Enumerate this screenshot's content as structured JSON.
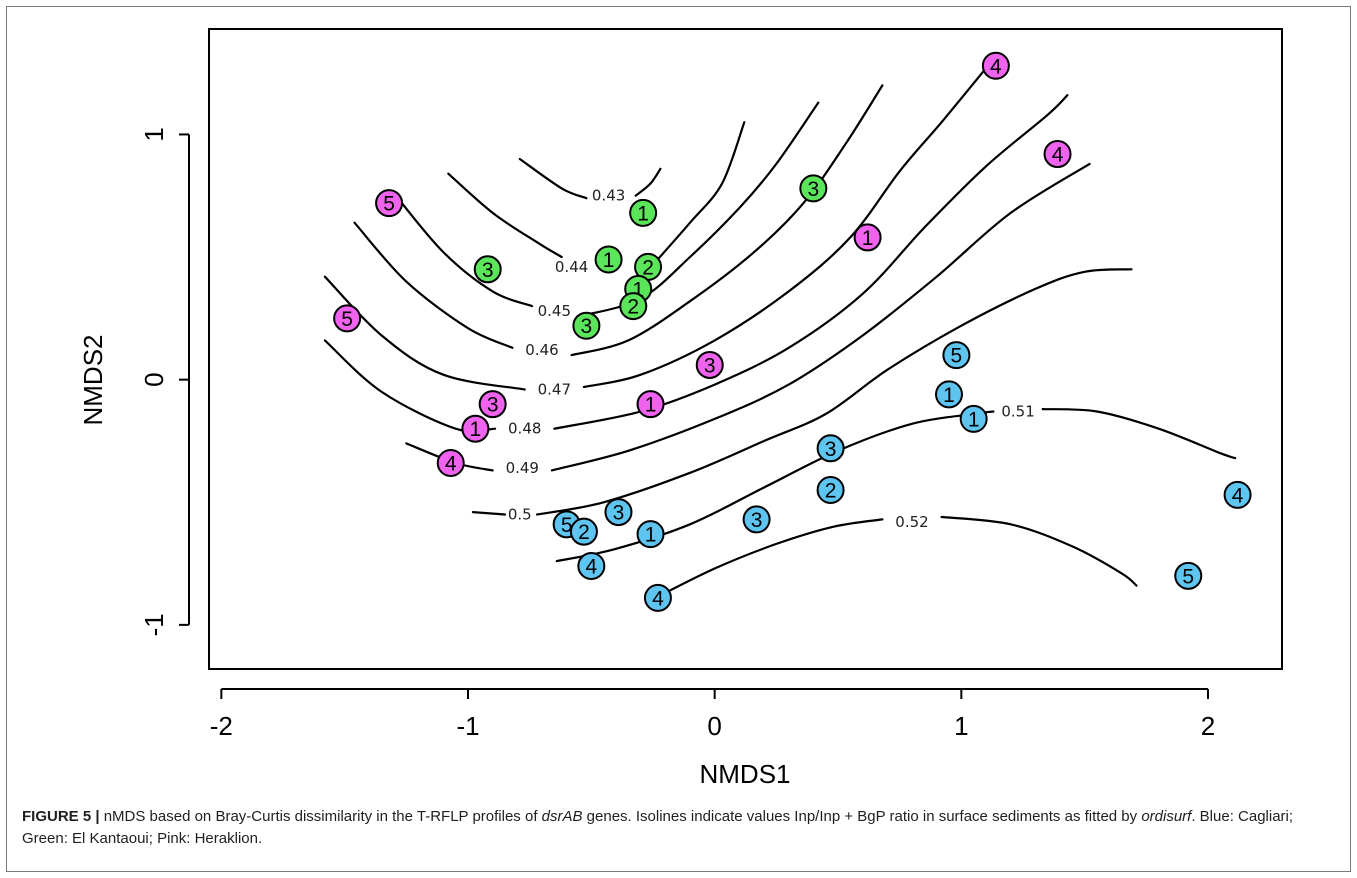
{
  "chart_data": {
    "type": "scatter",
    "xlabel": "NMDS1",
    "ylabel": "NMDS2",
    "xlim": [
      -2.05,
      2.3
    ],
    "ylim": [
      -1.18,
      1.43
    ],
    "x_ticks": [
      -2,
      -1,
      0,
      1,
      2
    ],
    "x_tick_labels": [
      "-2",
      "-1",
      "0",
      "1",
      "2"
    ],
    "y_ticks": [
      -1,
      0,
      1
    ],
    "y_tick_labels": [
      "-1",
      "0",
      "1"
    ],
    "grid": false,
    "legend": "none",
    "series": [
      {
        "color": "#5ec4f0",
        "points": [
          {
            "x": 0.98,
            "y": 0.1,
            "label": "5"
          },
          {
            "x": 0.95,
            "y": -0.06,
            "label": "1"
          },
          {
            "x": 1.05,
            "y": -0.16,
            "label": "1"
          },
          {
            "x": 0.47,
            "y": -0.28,
            "label": "3"
          },
          {
            "x": 0.47,
            "y": -0.45,
            "label": "2"
          },
          {
            "x": 0.17,
            "y": -0.57,
            "label": "3"
          },
          {
            "x": -0.39,
            "y": -0.54,
            "label": "3"
          },
          {
            "x": -0.6,
            "y": -0.59,
            "label": "5"
          },
          {
            "x": -0.53,
            "y": -0.62,
            "label": "2"
          },
          {
            "x": -0.26,
            "y": -0.63,
            "label": "1"
          },
          {
            "x": -0.5,
            "y": -0.76,
            "label": "4"
          },
          {
            "x": -0.23,
            "y": -0.89,
            "label": "4"
          },
          {
            "x": 2.12,
            "y": -0.47,
            "label": "4"
          },
          {
            "x": 1.92,
            "y": -0.8,
            "label": "5"
          }
        ]
      },
      {
        "color": "#5be55b",
        "points": [
          {
            "x": -0.29,
            "y": 0.68,
            "label": "1"
          },
          {
            "x": 0.4,
            "y": 0.78,
            "label": "3"
          },
          {
            "x": -0.43,
            "y": 0.49,
            "label": "1"
          },
          {
            "x": -0.27,
            "y": 0.46,
            "label": "2"
          },
          {
            "x": -0.31,
            "y": 0.37,
            "label": "1"
          },
          {
            "x": -0.33,
            "y": 0.3,
            "label": "2"
          },
          {
            "x": -0.52,
            "y": 0.22,
            "label": "3"
          },
          {
            "x": -0.92,
            "y": 0.45,
            "label": "3"
          }
        ]
      },
      {
        "color": "#f063ee",
        "points": [
          {
            "x": 1.14,
            "y": 1.28,
            "label": "4"
          },
          {
            "x": 1.39,
            "y": 0.92,
            "label": "4"
          },
          {
            "x": 0.62,
            "y": 0.58,
            "label": "1"
          },
          {
            "x": -1.32,
            "y": 0.72,
            "label": "5"
          },
          {
            "x": -1.49,
            "y": 0.25,
            "label": "5"
          },
          {
            "x": -0.02,
            "y": 0.06,
            "label": "3"
          },
          {
            "x": -0.26,
            "y": -0.1,
            "label": "1"
          },
          {
            "x": -0.9,
            "y": -0.1,
            "label": "3"
          },
          {
            "x": -0.97,
            "y": -0.2,
            "label": "1"
          },
          {
            "x": -1.07,
            "y": -0.34,
            "label": "4"
          }
        ]
      }
    ],
    "contours": [
      {
        "label": "0.43",
        "label_at": [
          -0.43,
          0.75
        ],
        "points": [
          [
            -0.79,
            0.9
          ],
          [
            -0.62,
            0.78
          ],
          [
            -0.52,
            0.74
          ]
        ],
        "points2": [
          [
            -0.32,
            0.75
          ],
          [
            -0.26,
            0.8
          ],
          [
            -0.22,
            0.86
          ]
        ]
      },
      {
        "label": "0.44",
        "label_at": [
          -0.58,
          0.46
        ],
        "points": [
          [
            -1.08,
            0.84
          ],
          [
            -0.9,
            0.68
          ],
          [
            -0.72,
            0.56
          ],
          [
            -0.62,
            0.5
          ]
        ],
        "points2": [
          [
            -0.24,
            0.48
          ],
          [
            -0.1,
            0.64
          ],
          [
            0.03,
            0.8
          ],
          [
            0.12,
            1.05
          ]
        ]
      },
      {
        "label": "0.45",
        "label_at": [
          -0.65,
          0.28
        ],
        "points": [
          [
            -1.3,
            0.76
          ],
          [
            -1.1,
            0.52
          ],
          [
            -0.9,
            0.36
          ],
          [
            -0.74,
            0.3
          ]
        ],
        "points2": [
          [
            -0.54,
            0.26
          ],
          [
            -0.3,
            0.33
          ],
          [
            -0.1,
            0.5
          ],
          [
            0.1,
            0.7
          ],
          [
            0.25,
            0.88
          ],
          [
            0.42,
            1.13
          ]
        ]
      },
      {
        "label": "0.46",
        "label_at": [
          -0.7,
          0.12
        ],
        "points": [
          [
            -1.46,
            0.64
          ],
          [
            -1.25,
            0.4
          ],
          [
            -1.0,
            0.21
          ],
          [
            -0.82,
            0.13
          ]
        ],
        "points2": [
          [
            -0.58,
            0.1
          ],
          [
            -0.35,
            0.16
          ],
          [
            -0.1,
            0.32
          ],
          [
            0.16,
            0.52
          ],
          [
            0.36,
            0.72
          ],
          [
            0.53,
            0.96
          ],
          [
            0.68,
            1.2
          ]
        ]
      },
      {
        "label": "0.47",
        "label_at": [
          -0.65,
          -0.04
        ],
        "points": [
          [
            -1.58,
            0.42
          ],
          [
            -1.35,
            0.18
          ],
          [
            -1.1,
            0.02
          ],
          [
            -0.77,
            -0.04
          ]
        ],
        "points2": [
          [
            -0.53,
            -0.03
          ],
          [
            -0.3,
            0.02
          ],
          [
            0.0,
            0.16
          ],
          [
            0.3,
            0.36
          ],
          [
            0.55,
            0.58
          ],
          [
            0.75,
            0.85
          ],
          [
            0.92,
            1.05
          ],
          [
            1.1,
            1.27
          ]
        ]
      },
      {
        "label": "0.48",
        "label_at": [
          -0.77,
          -0.2
        ],
        "points": [
          [
            -1.58,
            0.16
          ],
          [
            -1.35,
            -0.05
          ],
          [
            -1.05,
            -0.2
          ],
          [
            -0.89,
            -0.2
          ]
        ],
        "points2": [
          [
            -0.65,
            -0.2
          ],
          [
            -0.3,
            -0.13
          ],
          [
            0.0,
            -0.02
          ],
          [
            0.3,
            0.13
          ],
          [
            0.6,
            0.35
          ],
          [
            0.85,
            0.62
          ],
          [
            1.1,
            0.87
          ],
          [
            1.35,
            1.08
          ],
          [
            1.43,
            1.16
          ]
        ]
      },
      {
        "label": "0.49",
        "label_at": [
          -0.78,
          -0.36
        ],
        "points": [
          [
            -1.25,
            -0.26
          ],
          [
            -1.05,
            -0.34
          ],
          [
            -0.9,
            -0.37
          ]
        ],
        "points2": [
          [
            -0.66,
            -0.37
          ],
          [
            -0.35,
            -0.29
          ],
          [
            0.0,
            -0.16
          ],
          [
            0.3,
            -0.02
          ],
          [
            0.6,
            0.18
          ],
          [
            0.9,
            0.42
          ],
          [
            1.2,
            0.68
          ],
          [
            1.52,
            0.88
          ]
        ]
      },
      {
        "label": "0.5",
        "label_at": [
          -0.79,
          -0.55
        ],
        "points": [
          [
            -0.98,
            -0.54
          ],
          [
            -0.85,
            -0.55
          ]
        ],
        "points2": [
          [
            -0.72,
            -0.55
          ],
          [
            -0.45,
            -0.5
          ],
          [
            -0.1,
            -0.38
          ],
          [
            0.2,
            -0.25
          ],
          [
            0.45,
            -0.14
          ],
          [
            0.7,
            0.04
          ],
          [
            1.0,
            0.22
          ],
          [
            1.3,
            0.37
          ],
          [
            1.5,
            0.44
          ],
          [
            1.69,
            0.45
          ]
        ]
      },
      {
        "label": "0.51",
        "label_at": [
          1.23,
          -0.13
        ],
        "points": [
          [
            -0.64,
            -0.74
          ],
          [
            -0.4,
            -0.69
          ],
          [
            -0.1,
            -0.59
          ],
          [
            0.2,
            -0.44
          ],
          [
            0.5,
            -0.29
          ],
          [
            0.8,
            -0.18
          ],
          [
            1.05,
            -0.14
          ],
          [
            1.13,
            -0.13
          ]
        ],
        "points2": [
          [
            1.33,
            -0.12
          ],
          [
            1.55,
            -0.13
          ],
          [
            1.8,
            -0.2
          ],
          [
            2.05,
            -0.3
          ],
          [
            2.11,
            -0.32
          ]
        ]
      },
      {
        "label": "0.52",
        "label_at": [
          0.8,
          -0.58
        ],
        "points": [
          [
            -0.24,
            -0.89
          ],
          [
            0.0,
            -0.77
          ],
          [
            0.25,
            -0.67
          ],
          [
            0.48,
            -0.6
          ],
          [
            0.68,
            -0.57
          ]
        ],
        "points2": [
          [
            0.92,
            -0.56
          ],
          [
            1.2,
            -0.59
          ],
          [
            1.45,
            -0.68
          ],
          [
            1.65,
            -0.79
          ],
          [
            1.71,
            -0.84
          ]
        ]
      }
    ]
  },
  "caption": {
    "label": "FIGURE 5 |",
    "part1": " nMDS based on Bray-Curtis dissimilarity in the T-RFLP profiles of ",
    "gene": "dsrAB",
    "part2": " genes. Isolines indicate values Inp/Inp + BgP ratio in surface sediments as fitted by ",
    "func": "ordisurf",
    "part3": ". Blue: Cagliari; Green: El Kantaoui; Pink: Heraklion."
  }
}
